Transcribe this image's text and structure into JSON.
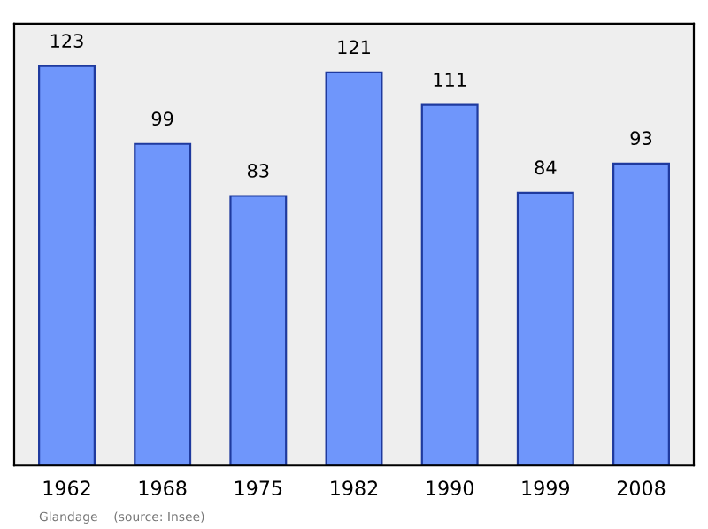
{
  "chart_data": {
    "type": "bar",
    "categories": [
      "1962",
      "1968",
      "1975",
      "1982",
      "1990",
      "1999",
      "2008"
    ],
    "values": [
      123,
      99,
      83,
      121,
      111,
      84,
      93
    ],
    "color": "#6f96fb",
    "ylim": [
      0,
      136
    ],
    "data_labels": true,
    "grid": false,
    "tick_labels": "x",
    "annotations": [
      "Glandage    (source: Insee)"
    ]
  }
}
